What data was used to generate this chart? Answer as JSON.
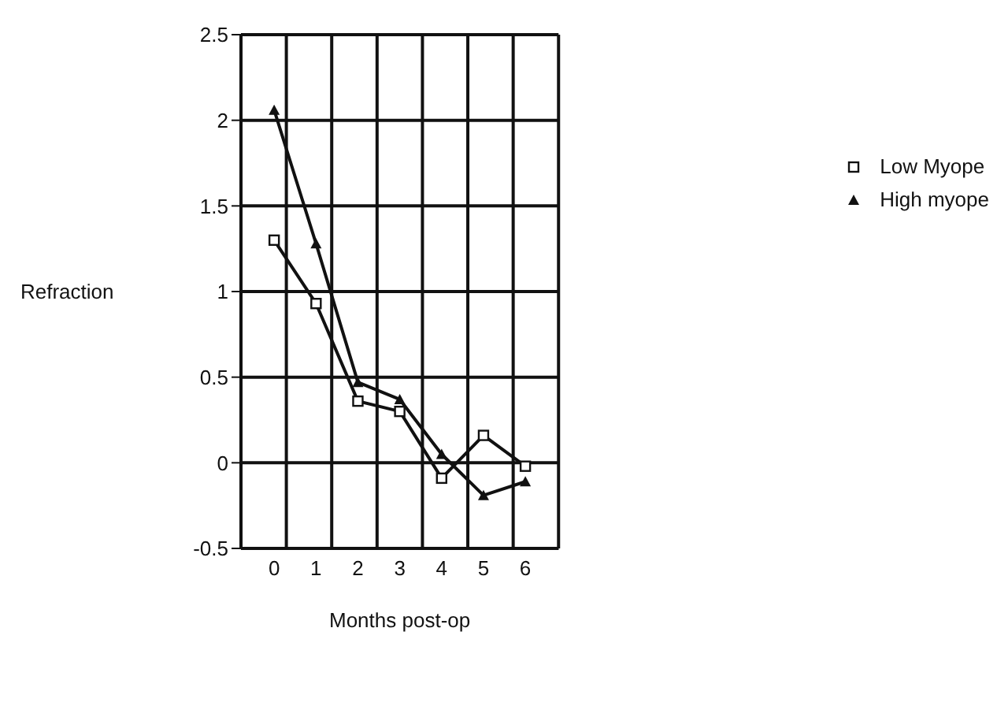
{
  "chart_data": {
    "type": "line",
    "xlabel": "Months post-op",
    "ylabel": "Refraction",
    "categories": [
      "0",
      "1",
      "2",
      "3",
      "4",
      "5",
      "6"
    ],
    "series": [
      {
        "name": "Low Myope",
        "color": "#111111",
        "marker": "square",
        "values": [
          1.3,
          0.93,
          0.36,
          0.3,
          -0.09,
          0.16,
          -0.02
        ]
      },
      {
        "name": "High myope",
        "color": "#111111",
        "marker": "triangle",
        "values": [
          2.06,
          1.28,
          0.47,
          0.37,
          0.05,
          -0.19,
          -0.11
        ]
      }
    ],
    "ylim": [
      -0.5,
      2.5
    ],
    "yticks": [
      -0.5,
      0,
      0.5,
      1,
      1.5,
      2,
      2.5
    ],
    "grid": true,
    "legend": "right"
  }
}
